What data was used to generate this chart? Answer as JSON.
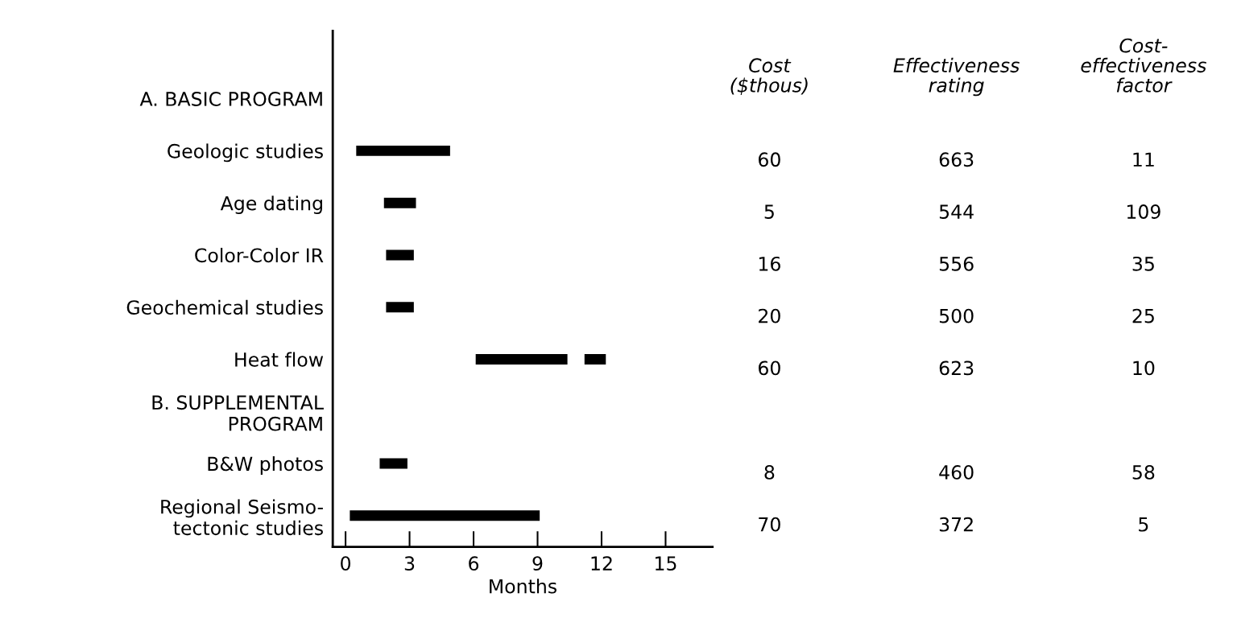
{
  "chart_data": [
    {
      "type": "bar",
      "orientation": "horizontal",
      "categories": [
        "A. BASIC PROGRAM",
        "Geologic studies",
        "Age dating",
        "Color-Color IR",
        "Geochemical studies",
        "Heat flow",
        "B. SUPPLEMENTAL\n        PROGRAM",
        "B&W photos",
        "Regional Seismo-\n    tectonic studies"
      ],
      "series": [
        {
          "color": "#000000",
          "base": [
            null,
            0.5,
            1.8,
            1.9,
            1.9,
            6.1,
            null,
            1.6,
            0.2
          ],
          "values": [
            null,
            4.4,
            1.5,
            1.3,
            1.3,
            4.3,
            null,
            1.3,
            8.9
          ]
        },
        {
          "color": "#000000",
          "base": [
            null,
            null,
            null,
            null,
            null,
            11.2,
            null,
            null,
            null
          ],
          "values": [
            null,
            null,
            null,
            null,
            null,
            1.0,
            null,
            null,
            null
          ]
        }
      ],
      "xlim": [
        -0.6,
        17.2
      ],
      "xticks": [
        0,
        3,
        6,
        9,
        12,
        15
      ],
      "xlabel": "Months",
      "grid": false
    },
    {
      "type": "other",
      "categories": [
        "Cost\n($thous)",
        "Effectiveness\nrating",
        "Cost-\neffectiveness\nfactor"
      ],
      "annotations": [
        "60",
        "663",
        "11",
        "5",
        "544",
        "109",
        "16",
        "556",
        "35",
        "20",
        "500",
        "25",
        "60",
        "623",
        "10",
        "8",
        "460",
        "58",
        "70",
        "372",
        "5"
      ]
    }
  ]
}
